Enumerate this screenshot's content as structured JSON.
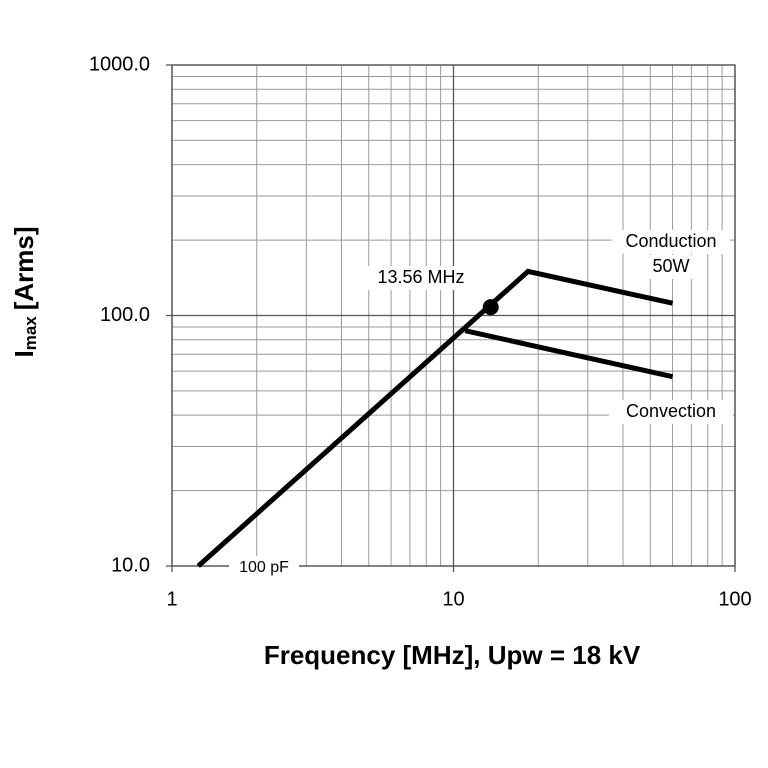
{
  "chart_data": {
    "type": "line",
    "xlabel": "Frequency [MHz], Upw = 18 kV",
    "ylabel": {
      "main": "I",
      "sub": "max",
      "rest": "[Arms]"
    },
    "xscale": "log",
    "yscale": "log",
    "xlim": [
      1,
      100
    ],
    "ylim": [
      10,
      1000
    ],
    "xticks": [
      1,
      10,
      100
    ],
    "yticks": [
      {
        "value": 10,
        "label": "10.0"
      },
      {
        "value": 100,
        "label": "100.0"
      },
      {
        "value": 1000,
        "label": "1000.0"
      }
    ],
    "xminorticks": [
      2,
      3,
      4,
      5,
      6,
      7,
      8,
      9,
      20,
      30,
      40,
      50,
      60,
      70,
      80,
      90
    ],
    "yminorticks": [
      20,
      30,
      40,
      50,
      60,
      70,
      80,
      90,
      200,
      300,
      400,
      500,
      600,
      700,
      800,
      900
    ],
    "grid": true,
    "series": [
      {
        "color": "#000000",
        "x": [
          1.24,
          18.4,
          60
        ],
        "values": [
          10,
          150,
          112
        ]
      },
      {
        "color": "#000000",
        "x": [
          11,
          60
        ],
        "values": [
          87,
          57
        ]
      }
    ],
    "marker": {
      "color": "#000000",
      "x": [
        13.56
      ],
      "values": [
        108
      ]
    },
    "annotations": [
      "Conduction",
      "50W",
      "Convection",
      "13.56 MHz",
      "100 pF"
    ]
  }
}
